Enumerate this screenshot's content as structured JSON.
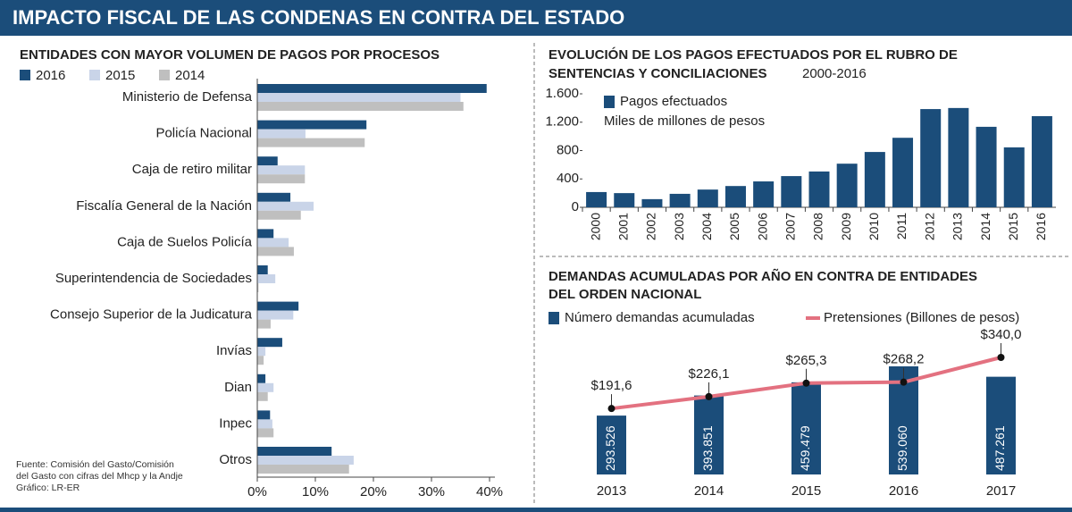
{
  "header": {
    "title": "IMPACTO FISCAL DE LAS CONDENAS EN CONTRA DEL ESTADO"
  },
  "source": {
    "lines": [
      "Fuente: Comisión del Gasto/Comisión",
      "del Gasto con cifras del Mhcp y la Andje",
      "Gráfico: LR-ER"
    ]
  },
  "chart_data": [
    {
      "type": "hbar",
      "title": [
        "ENTIDADES CON MAYOR VOLUMEN DE PAGOS POR PROCESOS"
      ],
      "categories": [
        "Ministerio de Defensa",
        "Policía Nacional",
        "Caja de retiro militar",
        "Fiscalía General de la Nación",
        "Caja de Suelos Policía",
        "Superintendencia de Sociedades",
        "Consejo Superior de la Judicatura",
        "Invías",
        "Dian",
        "Inpec",
        "Otros"
      ],
      "series": [
        {
          "name": "2016",
          "color": "#1b4d7a",
          "values": [
            39.5,
            18.8,
            3.5,
            5.7,
            2.8,
            1.8,
            7.1,
            4.3,
            1.4,
            2.2,
            12.8
          ]
        },
        {
          "name": "2015",
          "color": "#c9d4e8",
          "values": [
            35,
            8.3,
            8.2,
            9.7,
            5.4,
            3.1,
            6.2,
            1.4,
            2.8,
            2.6,
            16.6
          ]
        },
        {
          "name": "2014",
          "color": "#bfbfbf",
          "values": [
            35.5,
            18.5,
            8.2,
            7.5,
            6.3,
            0.2,
            2.3,
            1.1,
            1.8,
            2.8,
            15.8
          ]
        }
      ],
      "xlim": [
        0,
        40
      ],
      "xticks": [
        {
          "value": 0,
          "label": "0%"
        },
        {
          "value": 10,
          "label": "10%"
        },
        {
          "value": 20,
          "label": "20%"
        },
        {
          "value": 30,
          "label": "30%"
        },
        {
          "value": 40,
          "label": "40%"
        }
      ]
    },
    {
      "type": "bar",
      "title": [
        "EVOLUCIÓN DE LOS PAGOS EFECTUADOS POR EL RUBRO DE",
        "SENTENCIAS Y CONCILIACIONES"
      ],
      "subtitle": "2000-2016",
      "unit_label": "Miles de millones de pesos",
      "categories": [
        "2000",
        "2001",
        "2002",
        "2003",
        "2004",
        "2005",
        "2006",
        "2007",
        "2008",
        "2009",
        "2010",
        "2011",
        "2012",
        "2013",
        "2014",
        "2015",
        "2016"
      ],
      "series": [
        {
          "name": "Pagos efectuados",
          "color": "#1b4d7a",
          "values": [
            215,
            200,
            115,
            190,
            250,
            300,
            365,
            440,
            505,
            615,
            780,
            980,
            1385,
            1400,
            1135,
            845,
            1285
          ]
        }
      ],
      "ylim": [
        0,
        1600
      ],
      "yticks": [
        0,
        400,
        800,
        {
          "value": 1200,
          "label": "1.200"
        },
        {
          "value": 1600,
          "label": "1.600"
        }
      ]
    },
    {
      "type": "combo",
      "title": [
        "DEMANDAS ACUMULADAS POR AÑO EN CONTRA DE ENTIDADES",
        "DEL ORDEN NACIONAL"
      ],
      "categories": [
        "2013",
        "2014",
        "2015",
        "2016",
        "2017"
      ],
      "series": [
        {
          "name": "Número demandas acumuladas",
          "color": "#1b4d7a",
          "kind": "bar",
          "values": [
            293526,
            393851,
            459479,
            539060,
            487261
          ],
          "value_labels": [
            "293.526",
            "393.851",
            "459.479",
            "539.060",
            "487.261"
          ]
        },
        {
          "name": "Pretensiones (Billones de pesos)",
          "color": "#e37180",
          "kind": "line",
          "values": [
            191.6,
            226.1,
            265.3,
            268.2,
            340.0
          ],
          "value_labels": [
            "$191,6",
            "$226,1",
            "$265,3",
            "$268,2",
            "$340,0"
          ]
        }
      ]
    }
  ]
}
